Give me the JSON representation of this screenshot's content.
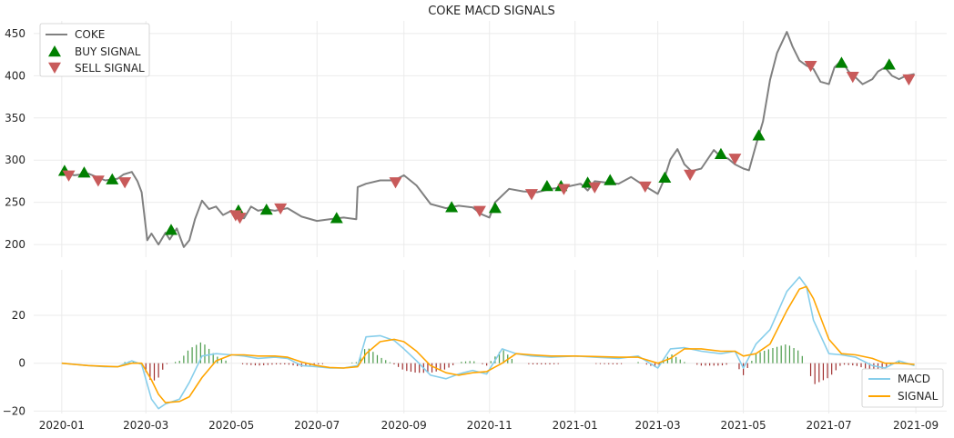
{
  "colors": {
    "price": "#808080",
    "buy": "#008000",
    "sell": "#c85a5a",
    "macd": "#87ceeb",
    "signal": "#ffa500",
    "hist_pos": "#4a9a4a",
    "hist_neg": "#a03030",
    "grid": "#ebebeb"
  },
  "chart_data": [
    {
      "type": "line",
      "title": "COKE MACD SIGNALS",
      "xlabel": "",
      "ylabel": "",
      "ylim": [
        185,
        465
      ],
      "ytick_labels": [
        "200",
        "250",
        "300",
        "350",
        "400",
        "450"
      ],
      "ytick_values": [
        200,
        250,
        300,
        350,
        400,
        450
      ],
      "grid": true,
      "legend_position": "top-left",
      "legend": [
        "COKE",
        "BUY SIGNAL",
        "SELL SIGNAL"
      ],
      "series": [
        {
          "name": "COKE",
          "x": [
            "2020-01-02",
            "2020-01-10",
            "2020-01-20",
            "2020-02-01",
            "2020-02-10",
            "2020-02-14",
            "2020-02-20",
            "2020-02-24",
            "2020-02-27",
            "2020-03-02",
            "2020-03-05",
            "2020-03-10",
            "2020-03-15",
            "2020-03-18",
            "2020-03-23",
            "2020-03-28",
            "2020-04-01",
            "2020-04-05",
            "2020-04-10",
            "2020-04-15",
            "2020-04-20",
            "2020-04-25",
            "2020-05-01",
            "2020-05-05",
            "2020-05-10",
            "2020-05-15",
            "2020-05-20",
            "2020-05-25",
            "2020-06-01",
            "2020-06-10",
            "2020-06-20",
            "2020-07-01",
            "2020-07-10",
            "2020-07-20",
            "2020-07-29",
            "2020-07-30",
            "2020-08-05",
            "2020-08-15",
            "2020-08-25",
            "2020-09-01",
            "2020-09-10",
            "2020-09-20",
            "2020-10-01",
            "2020-10-10",
            "2020-10-20",
            "2020-10-26",
            "2020-11-01",
            "2020-11-05",
            "2020-11-15",
            "2020-11-25",
            "2020-12-05",
            "2020-12-15",
            "2020-12-25",
            "2021-01-05",
            "2021-01-10",
            "2021-01-15",
            "2021-01-25",
            "2021-02-01",
            "2021-02-10",
            "2021-02-20",
            "2021-03-01",
            "2021-03-05",
            "2021-03-10",
            "2021-03-15",
            "2021-03-20",
            "2021-03-25",
            "2021-04-01",
            "2021-04-10",
            "2021-04-15",
            "2021-04-20",
            "2021-04-25",
            "2021-05-01",
            "2021-05-05",
            "2021-05-10",
            "2021-05-15",
            "2021-05-20",
            "2021-05-25",
            "2021-06-01",
            "2021-06-05",
            "2021-06-10",
            "2021-06-15",
            "2021-06-20",
            "2021-06-25",
            "2021-07-01",
            "2021-07-05",
            "2021-07-10",
            "2021-07-15",
            "2021-07-20",
            "2021-07-25",
            "2021-08-01",
            "2021-08-05",
            "2021-08-10",
            "2021-08-15",
            "2021-08-20",
            "2021-08-25",
            "2021-08-31"
          ],
          "values": [
            285,
            282,
            284,
            276,
            278,
            283,
            286,
            275,
            262,
            205,
            213,
            200,
            214,
            206,
            219,
            197,
            205,
            230,
            252,
            242,
            245,
            235,
            240,
            232,
            231,
            245,
            240,
            242,
            240,
            243,
            233,
            228,
            230,
            232,
            230,
            268,
            272,
            276,
            276,
            282,
            270,
            248,
            243,
            246,
            244,
            236,
            232,
            250,
            266,
            263,
            262,
            266,
            268,
            272,
            264,
            275,
            273,
            272,
            280,
            269,
            260,
            275,
            301,
            313,
            295,
            287,
            290,
            312,
            304,
            302,
            295,
            290,
            288,
            318,
            346,
            395,
            427,
            452,
            435,
            418,
            412,
            408,
            393,
            390,
            410,
            418,
            405,
            398,
            390,
            396,
            405,
            410,
            400,
            396,
            400,
            402
          ]
        }
      ],
      "buy_signals": {
        "x": [
          "2020-01-03",
          "2020-01-17",
          "2020-02-06",
          "2020-03-19",
          "2020-05-06",
          "2020-05-26",
          "2020-07-15",
          "2020-10-05",
          "2020-11-05",
          "2020-12-12",
          "2020-12-22",
          "2021-01-10",
          "2021-01-26",
          "2021-03-06",
          "2021-04-15",
          "2021-05-12",
          "2021-07-10",
          "2021-08-13"
        ],
        "values": [
          287,
          285,
          277,
          217,
          240,
          241,
          231,
          244,
          243,
          269,
          269,
          273,
          276,
          279,
          307,
          329,
          415,
          413
        ]
      },
      "sell_signals": {
        "x": [
          "2020-01-06",
          "2020-01-27",
          "2020-02-15",
          "2020-05-04",
          "2020-05-07",
          "2020-06-05",
          "2020-08-26",
          "2020-10-25",
          "2020-12-01",
          "2020-12-24",
          "2021-01-15",
          "2021-02-20",
          "2021-03-24",
          "2021-04-25",
          "2021-06-18",
          "2021-07-18",
          "2021-08-27"
        ],
        "values": [
          282,
          276,
          274,
          235,
          232,
          243,
          274,
          240,
          260,
          266,
          268,
          269,
          283,
          302,
          412,
          399,
          396
        ]
      }
    },
    {
      "type": "line",
      "title": "",
      "xlabel": "",
      "ylabel": "",
      "ylim": [
        -21,
        39
      ],
      "ytick_labels": [
        "−20",
        "0",
        "20"
      ],
      "ytick_values": [
        -20,
        0,
        20
      ],
      "xtick_labels": [
        "2020-01",
        "2020-03",
        "2020-05",
        "2020-07",
        "2020-09",
        "2020-11",
        "2021-01",
        "2021-03",
        "2021-05",
        "2021-07",
        "2021-09"
      ],
      "grid": true,
      "legend_position": "bottom-right",
      "legend": [
        "MACD",
        "SIGNAL"
      ],
      "x": [
        "2020-01-01",
        "2020-01-10",
        "2020-01-20",
        "2020-02-01",
        "2020-02-10",
        "2020-02-20",
        "2020-02-27",
        "2020-03-05",
        "2020-03-10",
        "2020-03-15",
        "2020-03-25",
        "2020-04-01",
        "2020-04-10",
        "2020-04-20",
        "2020-05-01",
        "2020-05-10",
        "2020-05-20",
        "2020-06-01",
        "2020-06-10",
        "2020-06-20",
        "2020-07-01",
        "2020-07-10",
        "2020-07-20",
        "2020-07-30",
        "2020-08-05",
        "2020-08-15",
        "2020-08-25",
        "2020-09-01",
        "2020-09-10",
        "2020-09-20",
        "2020-10-01",
        "2020-10-10",
        "2020-10-20",
        "2020-10-30",
        "2020-11-10",
        "2020-11-20",
        "2020-12-01",
        "2020-12-15",
        "2021-01-01",
        "2021-01-15",
        "2021-02-01",
        "2021-02-15",
        "2021-03-01",
        "2021-03-10",
        "2021-03-20",
        "2021-04-01",
        "2021-04-15",
        "2021-04-25",
        "2021-05-01",
        "2021-05-10",
        "2021-05-20",
        "2021-06-01",
        "2021-06-10",
        "2021-06-15",
        "2021-06-20",
        "2021-07-01",
        "2021-07-10",
        "2021-07-20",
        "2021-08-01",
        "2021-08-10",
        "2021-08-20",
        "2021-08-31"
      ],
      "series": [
        {
          "name": "MACD",
          "values": [
            0,
            -0.5,
            -1,
            -1.5,
            -1.5,
            1,
            -0.5,
            -15,
            -19,
            -17,
            -15,
            -8,
            3,
            4,
            3.5,
            3,
            2,
            2.5,
            2,
            -1,
            -1.5,
            -2,
            -2,
            -1,
            11,
            11.5,
            9.5,
            6,
            1,
            -5,
            -6.5,
            -4.5,
            -3,
            -4.5,
            6,
            4,
            3,
            2.5,
            3,
            2.5,
            2,
            3,
            -2,
            6,
            6.5,
            5,
            4,
            5,
            -2,
            8,
            14,
            30,
            36,
            32,
            18,
            4,
            3.5,
            2.5,
            -1,
            -2,
            1,
            -1
          ]
        },
        {
          "name": "SIGNAL",
          "values": [
            0,
            -0.5,
            -1,
            -1.3,
            -1.5,
            0,
            0,
            -7,
            -13,
            -16.5,
            -16,
            -14,
            -6,
            1,
            3.5,
            3.5,
            3,
            3,
            2.5,
            0.5,
            -1,
            -1.8,
            -2,
            -1.5,
            4,
            9,
            10,
            9,
            5,
            -1,
            -4,
            -5,
            -4,
            -3.5,
            0,
            4,
            3.5,
            3,
            3,
            2.8,
            2.5,
            2.5,
            0,
            2,
            6,
            6,
            5,
            5,
            3,
            4,
            8,
            22,
            31,
            32,
            27,
            10,
            4,
            3.5,
            2,
            0,
            0,
            -0.5
          ]
        }
      ]
    }
  ]
}
